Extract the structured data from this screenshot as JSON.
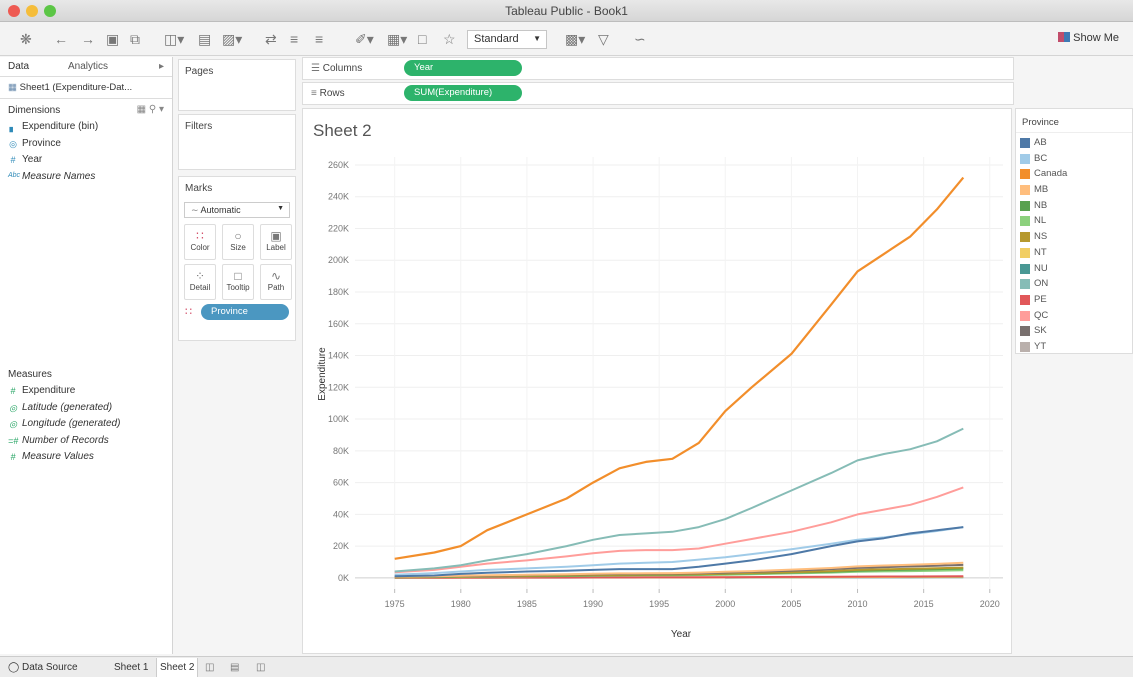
{
  "window": {
    "title": "Tableau Public - Book1"
  },
  "toolbar": {
    "mode_select": "Standard",
    "show_me": "Show Me"
  },
  "data_pane": {
    "tabs": [
      "Data",
      "Analytics"
    ],
    "data_source": "Sheet1 (Expenditure-Dat...",
    "dimensions_header": "Dimensions",
    "dimensions": [
      "Expenditure (bin)",
      "Province",
      "Year",
      "Measure Names"
    ],
    "measures_header": "Measures",
    "measures": [
      "Expenditure",
      "Latitude (generated)",
      "Longitude (generated)",
      "Number of Records",
      "Measure Values"
    ]
  },
  "cards": {
    "pages": "Pages",
    "filters": "Filters",
    "marks": "Marks",
    "mark_type": "Automatic",
    "mark_buttons": [
      "Color",
      "Size",
      "Label",
      "Detail",
      "Tooltip",
      "Path"
    ],
    "color_pill": "Province"
  },
  "shelves": {
    "columns_label": "Columns",
    "columns_pill": "Year",
    "rows_label": "Rows",
    "rows_pill": "SUM(Expenditure)"
  },
  "sheet": {
    "title": "Sheet 2"
  },
  "legend": {
    "title": "Province",
    "items": [
      {
        "label": "AB",
        "color": "#4e79a7"
      },
      {
        "label": "BC",
        "color": "#a0cbe8"
      },
      {
        "label": "Canada",
        "color": "#f28e2b"
      },
      {
        "label": "MB",
        "color": "#ffbe7d"
      },
      {
        "label": "NB",
        "color": "#59a14f"
      },
      {
        "label": "NL",
        "color": "#8cd17d"
      },
      {
        "label": "NS",
        "color": "#b6992d"
      },
      {
        "label": "NT",
        "color": "#f1ce63"
      },
      {
        "label": "NU",
        "color": "#499894"
      },
      {
        "label": "ON",
        "color": "#86bcb6"
      },
      {
        "label": "PE",
        "color": "#e15759"
      },
      {
        "label": "QC",
        "color": "#ff9d9a"
      },
      {
        "label": "SK",
        "color": "#79706e"
      },
      {
        "label": "YT",
        "color": "#bab0ac"
      }
    ]
  },
  "statusbar": {
    "data_source": "Data Source",
    "sheets": [
      "Sheet 1",
      "Sheet 2"
    ],
    "active": "Sheet 2"
  },
  "chart_data": {
    "type": "line",
    "xlabel": "Year",
    "ylabel": "Expenditure",
    "xlim": [
      1972,
      2021
    ],
    "ylim": [
      -7000,
      265000
    ],
    "x_ticks": [
      1975,
      1980,
      1985,
      1990,
      1995,
      2000,
      2005,
      2010,
      2015,
      2020
    ],
    "y_ticks": [
      0,
      20000,
      40000,
      60000,
      80000,
      100000,
      120000,
      140000,
      160000,
      180000,
      200000,
      220000,
      240000,
      260000
    ],
    "y_tick_labels": [
      "0K",
      "20K",
      "40K",
      "60K",
      "80K",
      "100K",
      "120K",
      "140K",
      "160K",
      "180K",
      "200K",
      "220K",
      "240K",
      "260K"
    ],
    "x": [
      1975,
      1978,
      1980,
      1982,
      1985,
      1988,
      1990,
      1992,
      1994,
      1996,
      1998,
      2000,
      2002,
      2005,
      2008,
      2010,
      2012,
      2014,
      2016,
      2018
    ],
    "series": [
      {
        "name": "Canada",
        "color": "#f28e2b",
        "values": [
          12000,
          16000,
          20000,
          30000,
          40000,
          50000,
          60000,
          69000,
          73000,
          75000,
          85000,
          105000,
          120000,
          141000,
          172000,
          193000,
          204000,
          215000,
          232000,
          252000
        ]
      },
      {
        "name": "ON",
        "color": "#86bcb6",
        "values": [
          4000,
          6000,
          8000,
          11000,
          15000,
          20000,
          24000,
          27000,
          28000,
          29000,
          32000,
          37000,
          44000,
          55000,
          66000,
          74000,
          78000,
          81000,
          86000,
          94000
        ]
      },
      {
        "name": "QC",
        "color": "#ff9d9a",
        "values": [
          3500,
          5000,
          7000,
          9000,
          11000,
          13500,
          15500,
          17000,
          17500,
          17500,
          18500,
          21500,
          24500,
          29000,
          35000,
          40000,
          43000,
          46000,
          51000,
          57000
        ]
      },
      {
        "name": "AB",
        "color": "#4e79a7",
        "values": [
          1000,
          1500,
          2500,
          3200,
          4000,
          4500,
          5000,
          5500,
          5500,
          5500,
          7000,
          9000,
          11000,
          15000,
          20000,
          23000,
          25000,
          28000,
          30000,
          32000
        ]
      },
      {
        "name": "BC",
        "color": "#a0cbe8",
        "values": [
          2000,
          3000,
          4000,
          5000,
          6000,
          7000,
          8000,
          9000,
          9500,
          10000,
          11500,
          13000,
          15000,
          18000,
          21500,
          24000,
          25500,
          27500,
          29500,
          32000
        ]
      },
      {
        "name": "MB",
        "color": "#ffbe7d",
        "values": [
          800,
          1000,
          1300,
          1600,
          2000,
          2300,
          2600,
          2800,
          2900,
          3000,
          3300,
          3800,
          4300,
          5200,
          6200,
          7200,
          7800,
          8300,
          8800,
          9500
        ]
      },
      {
        "name": "SK",
        "color": "#79706e",
        "values": [
          700,
          900,
          1200,
          1400,
          1800,
          2100,
          2300,
          2500,
          2600,
          2700,
          2900,
          3300,
          3800,
          4500,
          5500,
          6300,
          6800,
          7200,
          7700,
          8200
        ]
      },
      {
        "name": "NS",
        "color": "#b6992d",
        "values": [
          500,
          700,
          900,
          1100,
          1400,
          1600,
          1800,
          2000,
          2100,
          2200,
          2400,
          2700,
          3100,
          3600,
          4300,
          5000,
          5400,
          5700,
          6100,
          6500
        ]
      },
      {
        "name": "NB",
        "color": "#59a14f",
        "values": [
          400,
          600,
          800,
          1000,
          1200,
          1400,
          1600,
          1800,
          1900,
          2000,
          2200,
          2500,
          2800,
          3300,
          3900,
          4500,
          4900,
          5200,
          5500,
          5900
        ]
      },
      {
        "name": "NL",
        "color": "#8cd17d",
        "values": [
          350,
          500,
          650,
          800,
          1000,
          1200,
          1400,
          1500,
          1600,
          1700,
          1800,
          2000,
          2300,
          2800,
          3300,
          3800,
          4100,
          4300,
          4500,
          4800
        ]
      },
      {
        "name": "PE",
        "color": "#e15759",
        "values": [
          100,
          120,
          150,
          180,
          220,
          260,
          300,
          330,
          350,
          370,
          400,
          450,
          500,
          600,
          700,
          800,
          850,
          900,
          950,
          1000
        ]
      },
      {
        "name": "NT",
        "color": "#f1ce63",
        "values": [
          100,
          120,
          150,
          170,
          200,
          230,
          260,
          280,
          290,
          300,
          320,
          350,
          400,
          450,
          500,
          550,
          580,
          610,
          640,
          680
        ]
      },
      {
        "name": "NU",
        "color": "#499894",
        "values": [
          null,
          null,
          null,
          null,
          null,
          null,
          null,
          null,
          null,
          null,
          null,
          200,
          250,
          300,
          350,
          400,
          420,
          450,
          480,
          510
        ]
      },
      {
        "name": "YT",
        "color": "#bab0ac",
        "values": [
          50,
          60,
          80,
          90,
          110,
          130,
          150,
          160,
          170,
          180,
          190,
          210,
          230,
          260,
          300,
          340,
          360,
          380,
          400,
          430
        ]
      }
    ]
  }
}
